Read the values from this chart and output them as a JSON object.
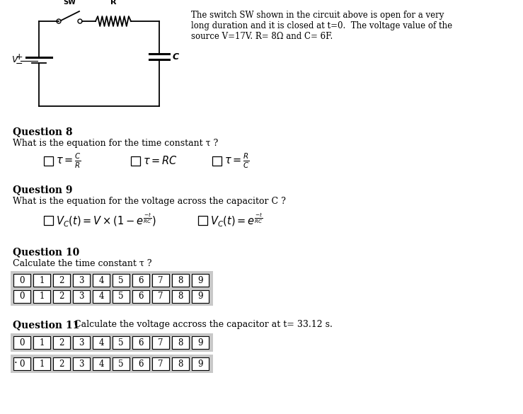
{
  "bg_color": "#ffffff",
  "problem_text_line1": "The switch SW shown in the circuit above is open for a very",
  "problem_text_line2": "long duration and it is closed at t=0.  The voltage value of the",
  "problem_text_line3": "source V=17V. R= 8Ω and C= 6F.",
  "q8_title": "Question 8",
  "q8_body": "What is the equation for the time constant τ ?",
  "q9_title": "Question 9",
  "q9_body": "What is the equation for the voltage across the capacitor C ?",
  "q10_title": "Question 10",
  "q10_body": "Calculate the time constant τ ?",
  "q11_title": "Question 11",
  "q11_body": "Calculate the voltage accross the capacitor at t= 33.12 s.",
  "digits": [
    "0",
    "1",
    "2",
    "3",
    "4",
    "5",
    "6",
    "7",
    "8",
    "9"
  ],
  "text_color": "#000000",
  "question_color": "#000000",
  "body_color": "#000000"
}
